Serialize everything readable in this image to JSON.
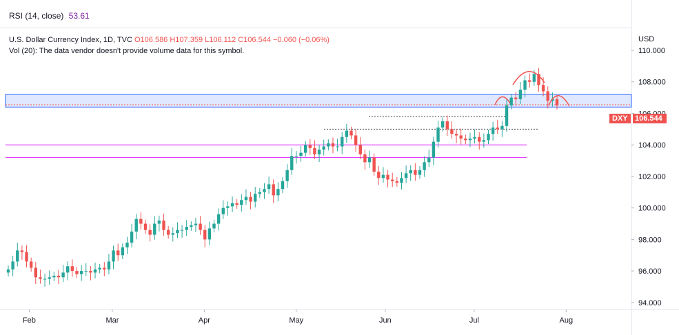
{
  "rsi": {
    "label": "RSI (14, close)",
    "value": "53.61"
  },
  "legend": {
    "title": "U.S. Dollar Currency Index, 1D, TVC",
    "ohlc": "O106.586 H107.359 L106.112 C106.544 −0.060 (−0.06%)",
    "volume": "Vol (20): The data vendor doesn't provide volume data for this symbol."
  },
  "axis": {
    "currency": "USD",
    "y_labels": [
      "110.000",
      "108.000",
      "106.000",
      "104.000",
      "102.000",
      "100.000",
      "98.000",
      "96.000",
      "94.000"
    ],
    "x_labels": [
      "Feb",
      "Mar",
      "Apr",
      "May",
      "Jun",
      "Jul",
      "Aug"
    ]
  },
  "last": {
    "symbol": "DXY",
    "price": "106.544"
  },
  "colors": {
    "up": "#26a69a",
    "down": "#ef5350",
    "zone": "#2962ff",
    "pink": "#e040fb"
  },
  "chart_data": {
    "type": "candlestick",
    "symbol": "DXY",
    "ylim": [
      93.6,
      111.4
    ],
    "y_ticks": [
      110,
      108,
      106,
      104,
      102,
      100,
      98,
      96,
      94
    ],
    "x_labels": [
      {
        "label": "Feb",
        "date": "2022-02-01"
      },
      {
        "label": "Mar",
        "date": "2022-03-01"
      },
      {
        "label": "Apr",
        "date": "2022-04-01"
      },
      {
        "label": "May",
        "date": "2022-05-02"
      },
      {
        "label": "Jun",
        "date": "2022-06-01"
      },
      {
        "label": "Jul",
        "date": "2022-07-01"
      },
      {
        "label": "Aug",
        "date": "2022-08-01"
      }
    ],
    "candles_close": [
      96.1,
      96.6,
      97.3,
      97.2,
      96.6,
      96.2,
      95.6,
      95.5,
      95.5,
      95.6,
      95.7,
      95.6,
      95.9,
      96.3,
      96.0,
      95.8,
      96.0,
      96.0,
      95.9,
      96.1,
      96.2,
      96.1,
      96.6,
      97.3,
      97.0,
      97.5,
      97.8,
      98.5,
      99.3,
      99.0,
      98.6,
      98.3,
      99.0,
      99.2,
      98.6,
      98.3,
      98.4,
      98.6,
      98.6,
      98.8,
      98.9,
      99.0,
      98.6,
      98.0,
      98.7,
      99.0,
      99.6,
      100.0,
      100.1,
      100.3,
      100.2,
      100.5,
      100.7,
      100.4,
      100.9,
      101.0,
      101.2,
      101.5,
      100.8,
      101.2,
      101.7,
      102.4,
      103.3,
      103.3,
      103.5,
      104.0,
      103.8,
      103.4,
      103.7,
      103.9,
      104.1,
      103.9,
      103.9,
      104.5,
      104.9,
      104.6,
      104.0,
      103.4,
      102.9,
      103.2,
      102.3,
      101.9,
      102.1,
      101.8,
      101.7,
      101.6,
      101.9,
      102.2,
      102.4,
      102.1,
      102.4,
      102.9,
      103.2,
      104.2,
      105.1,
      105.5,
      105.0,
      104.7,
      104.6,
      104.4,
      104.3,
      104.4,
      104.5,
      104.2,
      104.3,
      104.7,
      105.1,
      105.0,
      105.2,
      106.5,
      107.0,
      106.9,
      107.5,
      108.1,
      108.0,
      108.5,
      107.8,
      107.4,
      106.8,
      106.9,
      106.5
    ],
    "price_levels": [
      {
        "kind": "zone",
        "from": 106.4,
        "to": 107.2
      },
      {
        "kind": "line",
        "value": 104.0
      },
      {
        "kind": "line",
        "value": 103.2
      },
      {
        "kind": "line",
        "value": 105.8
      },
      {
        "kind": "line",
        "value": 105.0
      }
    ],
    "last_price": 106.544
  }
}
